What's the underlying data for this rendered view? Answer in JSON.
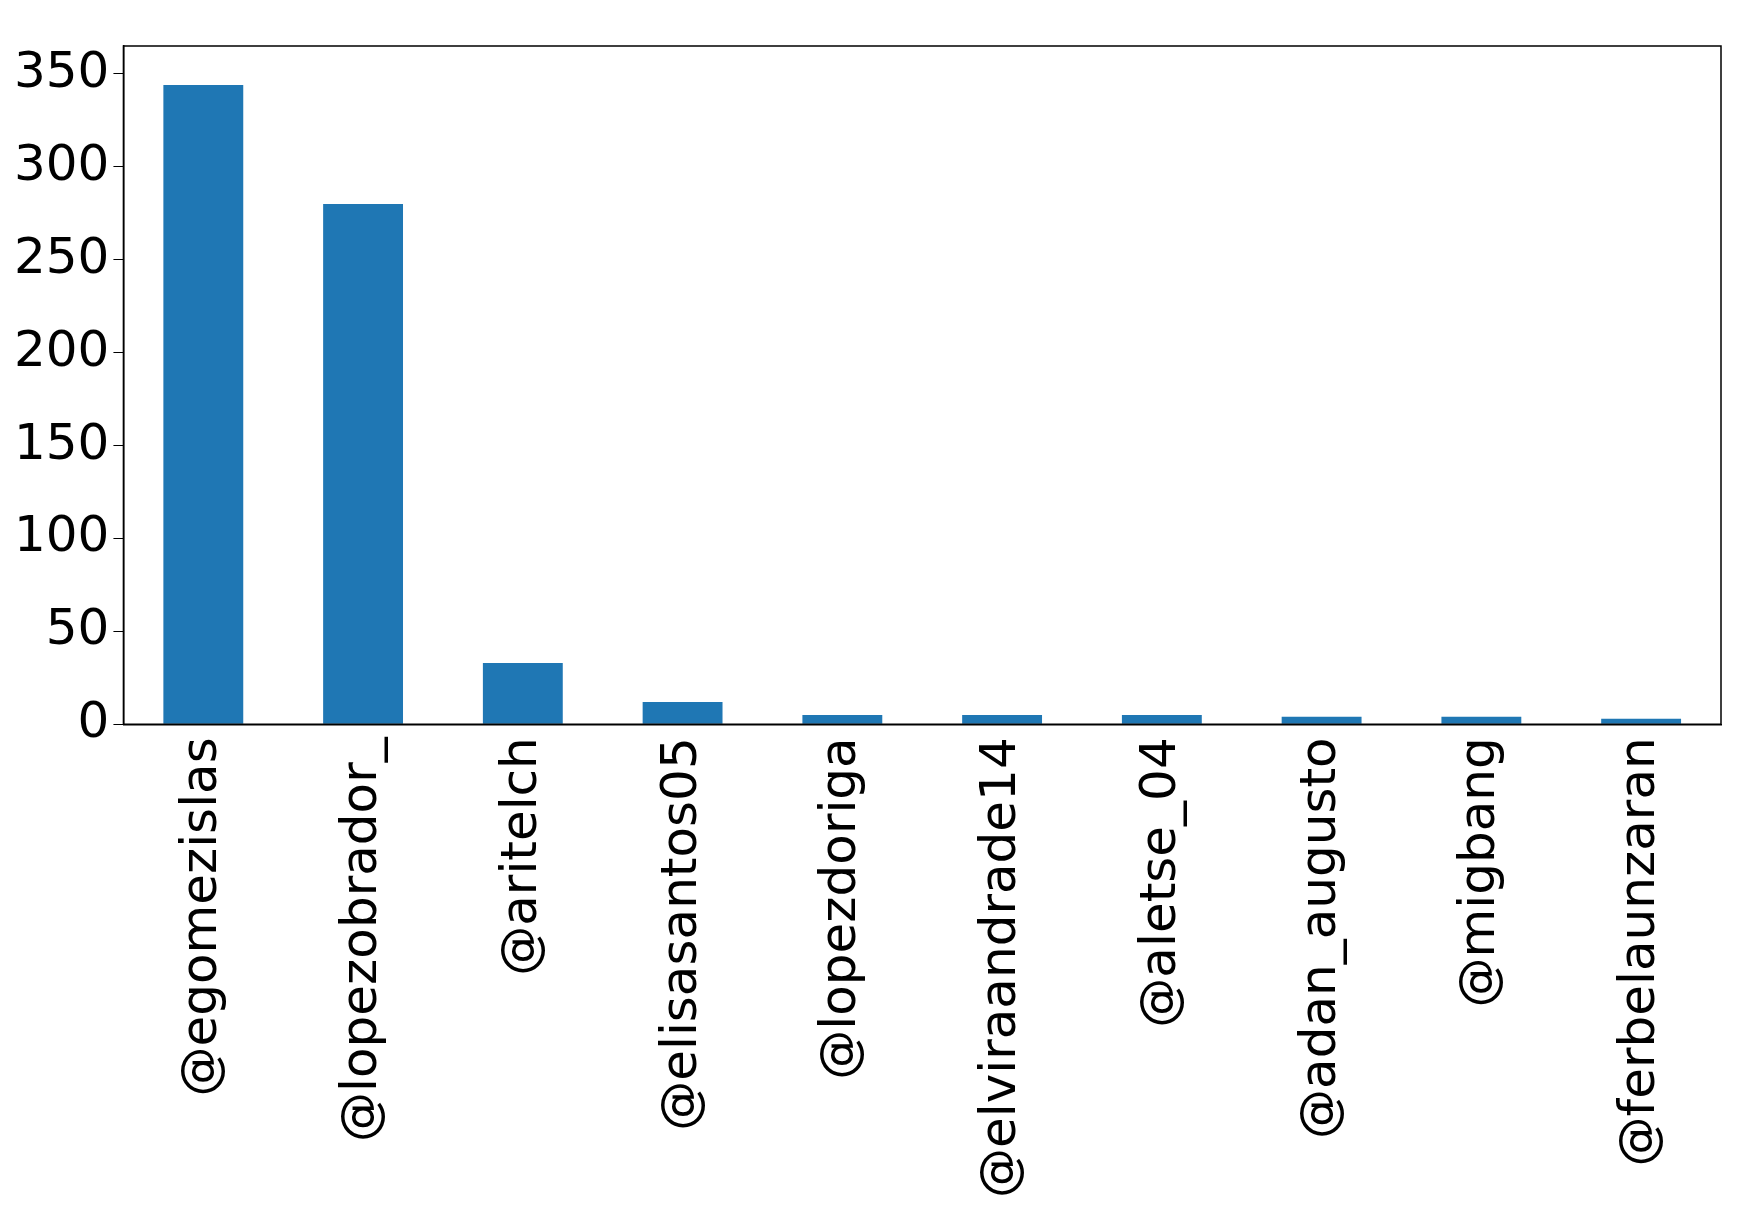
{
  "chart_data": {
    "type": "bar",
    "categories": [
      "@egomezislas",
      "@lopezobrador_",
      "@aritelch",
      "@elisasantos05",
      "@lopezdoriga",
      "@elviraandrade14",
      "@aletse_04",
      "@adan_augusto",
      "@migbang",
      "@ferbelaunzaran"
    ],
    "values": [
      344,
      280,
      33,
      12,
      5,
      5,
      5,
      4,
      4,
      3
    ],
    "color": "#1f77b4",
    "ylim": [
      0,
      365
    ],
    "yticks": [
      0,
      50,
      100,
      150,
      200,
      250,
      300,
      350
    ],
    "grid": false,
    "legend": false
  }
}
